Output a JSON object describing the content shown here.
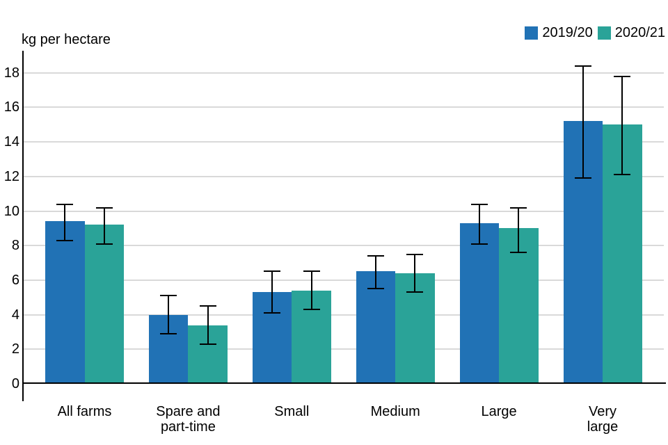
{
  "chart_data": {
    "type": "bar",
    "title": "",
    "ylabel": "kg per hectare",
    "xlabel": "",
    "ylim": [
      0,
      18
    ],
    "ytick_step": 2,
    "grid": true,
    "legend_position": "top-right",
    "categories": [
      "All farms",
      "Spare and\npart-time",
      "Small",
      "Medium",
      "Large",
      "Very\nlarge"
    ],
    "series": [
      {
        "name": "2019/20",
        "color": "#2172b5",
        "values": [
          9.4,
          4.0,
          5.3,
          6.5,
          9.3,
          15.2
        ],
        "error_low": [
          8.3,
          2.9,
          4.1,
          5.5,
          8.1,
          11.9
        ],
        "error_high": [
          10.4,
          5.1,
          6.5,
          7.4,
          10.4,
          18.4
        ]
      },
      {
        "name": "2020/21",
        "color": "#2aa398",
        "values": [
          9.2,
          3.4,
          5.4,
          6.4,
          9.0,
          15.0
        ],
        "error_low": [
          8.1,
          2.3,
          4.3,
          5.3,
          7.6,
          12.1
        ],
        "error_high": [
          10.2,
          4.5,
          6.5,
          7.5,
          10.2,
          17.8
        ]
      }
    ]
  },
  "colors": {
    "background": "#ffffff",
    "gridline": "#d9d9d9",
    "axis": "#000000",
    "error_bar": "#000000",
    "text": "#000000"
  }
}
